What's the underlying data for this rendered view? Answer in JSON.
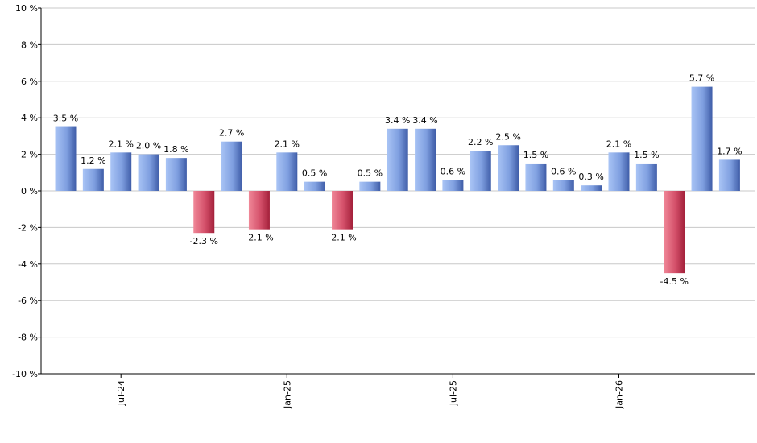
{
  "chart_data": {
    "type": "bar",
    "title": "",
    "xlabel": "",
    "ylabel": "",
    "ylim": [
      -10,
      10
    ],
    "y_ticks": [
      10,
      8,
      6,
      4,
      2,
      0,
      -2,
      -4,
      -6,
      -8,
      -10
    ],
    "y_tick_labels": [
      "10 %",
      "8 %",
      "6 %",
      "4 %",
      "2 %",
      "0 %",
      "-2 %",
      "-4 %",
      "-6 %",
      "-8 %",
      "-10 %"
    ],
    "grid": true,
    "x_tick_labels": [
      {
        "label": "Jul-24",
        "index": 2
      },
      {
        "label": "Jan-25",
        "index": 8
      },
      {
        "label": "Jul-25",
        "index": 14
      },
      {
        "label": "Jan-26",
        "index": 20
      }
    ],
    "values": [
      3.5,
      1.2,
      2.1,
      2.0,
      1.8,
      -2.3,
      2.7,
      -2.1,
      2.1,
      0.5,
      -2.1,
      0.5,
      3.4,
      3.4,
      0.6,
      2.2,
      2.5,
      1.5,
      0.6,
      0.3,
      2.1,
      1.5,
      -4.5,
      5.7,
      1.7
    ],
    "value_labels": [
      "3.5 %",
      "1.2 %",
      "2.1 %",
      "2.0 %",
      "1.8 %",
      "-2.3 %",
      "2.7 %",
      "-2.1 %",
      "2.1 %",
      "0.5 %",
      "-2.1 %",
      "0.5 %",
      "3.4 %",
      "3.4 %",
      "0.6 %",
      "2.2 %",
      "2.5 %",
      "1.5 %",
      "0.6 %",
      "0.3 %",
      "2.1 %",
      "1.5 %",
      "-4.5 %",
      "5.7 %",
      "1.7 %"
    ],
    "colors": {
      "positive_light": "#a9c4f5",
      "positive_dark": "#3f5da8",
      "negative_light": "#f08898",
      "negative_dark": "#a3203a",
      "grid": "#c8c8c8",
      "axis": "#000000"
    }
  }
}
